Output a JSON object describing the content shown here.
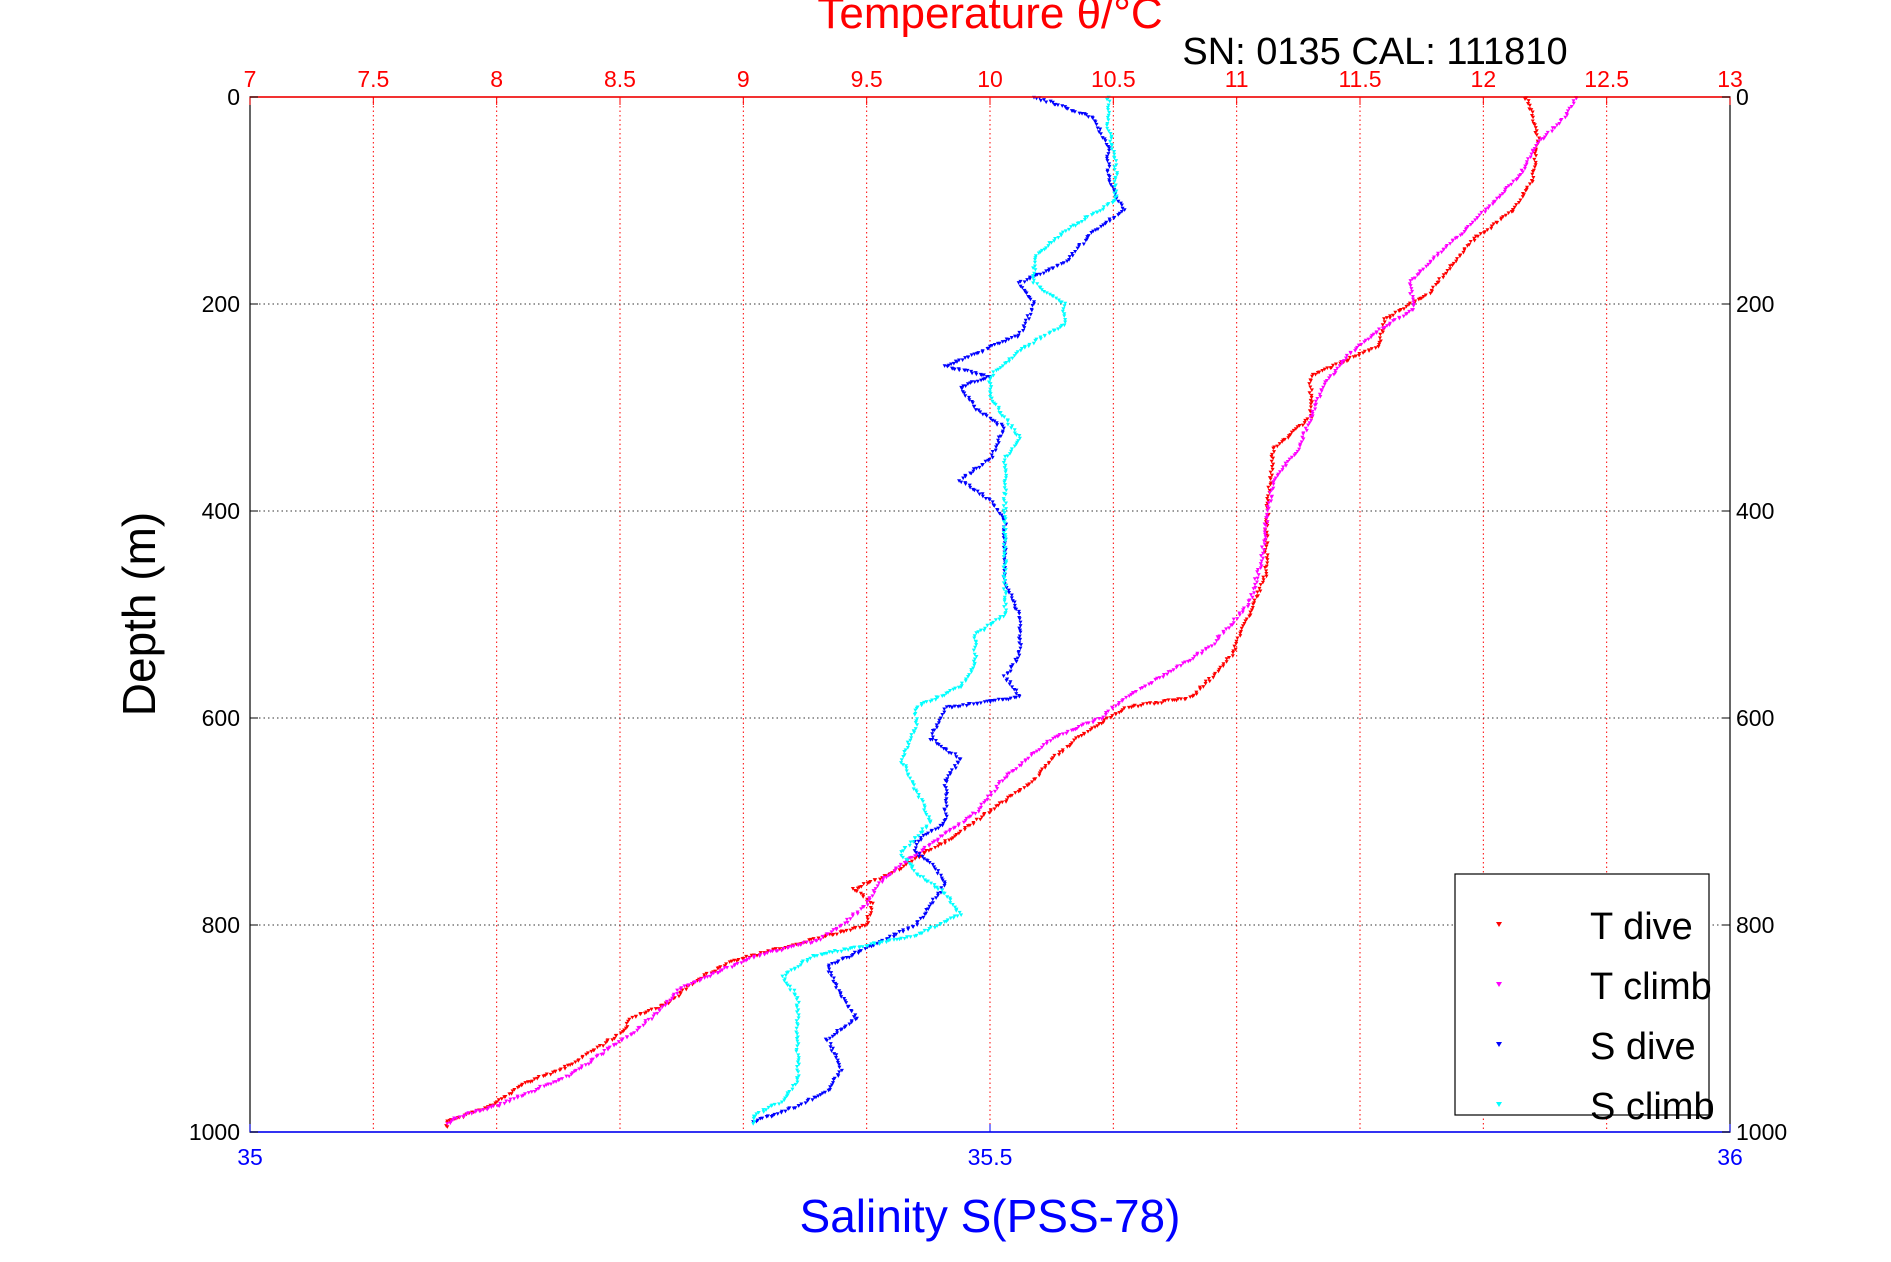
{
  "chart_data": {
    "type": "scatter",
    "title": "Temperature θ/°C",
    "subtitle": "SN: 0135  CAL: 111810",
    "xlabel": "Salinity S(PSS-78)",
    "ylabel": "Depth (m)",
    "x_top": {
      "label": "Temperature θ/°C",
      "lim": [
        7,
        13
      ],
      "ticks": [
        "7",
        "7.5",
        "8",
        "8.5",
        "9",
        "9.5",
        "10",
        "10.5",
        "11",
        "11.5",
        "12",
        "12.5",
        "13"
      ],
      "color": "#ff0000"
    },
    "x_bottom": {
      "label": "Salinity S(PSS-78)",
      "lim": [
        35,
        36
      ],
      "ticks": [
        "35",
        "35.5",
        "36"
      ],
      "color": "#0000ff"
    },
    "y": {
      "lim": [
        0,
        1000
      ],
      "reversed": true,
      "ticks_left": [
        "0",
        "200",
        "400",
        "600",
        "800",
        "1000"
      ],
      "ticks_right": [
        "0",
        "200",
        "400",
        "600",
        "800",
        "1000"
      ]
    },
    "grid": true,
    "legend_position": "bottom-right",
    "series": [
      {
        "name": "T dive",
        "axis": "temperature",
        "color": "#ff0000",
        "points": [
          [
            12.17,
            0
          ],
          [
            12.2,
            15
          ],
          [
            12.22,
            40
          ],
          [
            12.2,
            80
          ],
          [
            12.12,
            110
          ],
          [
            11.95,
            140
          ],
          [
            11.88,
            160
          ],
          [
            11.78,
            190
          ],
          [
            11.6,
            215
          ],
          [
            11.58,
            240
          ],
          [
            11.3,
            270
          ],
          [
            11.3,
            310
          ],
          [
            11.15,
            340
          ],
          [
            11.13,
            380
          ],
          [
            11.12,
            420
          ],
          [
            11.12,
            460
          ],
          [
            11.05,
            500
          ],
          [
            10.98,
            540
          ],
          [
            10.9,
            560
          ],
          [
            10.82,
            580
          ],
          [
            10.55,
            590
          ],
          [
            10.35,
            620
          ],
          [
            10.25,
            640
          ],
          [
            10.18,
            660
          ],
          [
            10.0,
            690
          ],
          [
            9.85,
            715
          ],
          [
            9.7,
            735
          ],
          [
            9.6,
            750
          ],
          [
            9.45,
            765
          ],
          [
            9.52,
            780
          ],
          [
            9.5,
            800
          ],
          [
            9.2,
            820
          ],
          [
            8.95,
            835
          ],
          [
            8.8,
            855
          ],
          [
            8.7,
            875
          ],
          [
            8.55,
            890
          ],
          [
            8.5,
            905
          ],
          [
            8.4,
            920
          ],
          [
            8.3,
            935
          ],
          [
            8.1,
            955
          ],
          [
            7.98,
            975
          ],
          [
            7.8,
            990
          ],
          [
            7.8,
            995
          ]
        ]
      },
      {
        "name": "T climb",
        "axis": "temperature",
        "color": "#ff00ff",
        "points": [
          [
            12.38,
            0
          ],
          [
            12.33,
            20
          ],
          [
            12.22,
            45
          ],
          [
            12.15,
            75
          ],
          [
            12.05,
            100
          ],
          [
            11.92,
            130
          ],
          [
            11.78,
            160
          ],
          [
            11.7,
            180
          ],
          [
            11.72,
            205
          ],
          [
            11.58,
            225
          ],
          [
            11.45,
            250
          ],
          [
            11.35,
            280
          ],
          [
            11.3,
            310
          ],
          [
            11.25,
            340
          ],
          [
            11.15,
            370
          ],
          [
            11.12,
            410
          ],
          [
            11.1,
            450
          ],
          [
            11.05,
            490
          ],
          [
            10.9,
            530
          ],
          [
            10.7,
            560
          ],
          [
            10.55,
            580
          ],
          [
            10.45,
            600
          ],
          [
            10.25,
            620
          ],
          [
            10.15,
            640
          ],
          [
            10.05,
            660
          ],
          [
            9.95,
            690
          ],
          [
            9.8,
            715
          ],
          [
            9.65,
            740
          ],
          [
            9.55,
            760
          ],
          [
            9.5,
            780
          ],
          [
            9.4,
            800
          ],
          [
            9.3,
            815
          ],
          [
            9.05,
            830
          ],
          [
            8.9,
            845
          ],
          [
            8.75,
            860
          ],
          [
            8.65,
            885
          ],
          [
            8.55,
            905
          ],
          [
            8.42,
            925
          ],
          [
            8.3,
            945
          ],
          [
            8.15,
            960
          ],
          [
            8.0,
            975
          ],
          [
            7.85,
            985
          ],
          [
            7.8,
            992
          ]
        ]
      },
      {
        "name": "S dive",
        "axis": "salinity",
        "color": "#0000ff",
        "points": [
          [
            35.53,
            0
          ],
          [
            35.55,
            10
          ],
          [
            35.57,
            20
          ],
          [
            35.58,
            50
          ],
          [
            35.58,
            80
          ],
          [
            35.59,
            110
          ],
          [
            35.57,
            130
          ],
          [
            35.55,
            160
          ],
          [
            35.52,
            180
          ],
          [
            35.53,
            200
          ],
          [
            35.52,
            230
          ],
          [
            35.47,
            260
          ],
          [
            35.5,
            270
          ],
          [
            35.48,
            280
          ],
          [
            35.49,
            300
          ],
          [
            35.51,
            320
          ],
          [
            35.5,
            350
          ],
          [
            35.48,
            370
          ],
          [
            35.5,
            390
          ],
          [
            35.51,
            410
          ],
          [
            35.51,
            440
          ],
          [
            35.51,
            470
          ],
          [
            35.52,
            500
          ],
          [
            35.52,
            540
          ],
          [
            35.51,
            560
          ],
          [
            35.52,
            580
          ],
          [
            35.47,
            590
          ],
          [
            35.46,
            620
          ],
          [
            35.48,
            640
          ],
          [
            35.47,
            660
          ],
          [
            35.47,
            700
          ],
          [
            35.45,
            720
          ],
          [
            35.45,
            730
          ],
          [
            35.46,
            740
          ],
          [
            35.47,
            760
          ],
          [
            35.46,
            780
          ],
          [
            35.45,
            800
          ],
          [
            35.42,
            820
          ],
          [
            35.39,
            840
          ],
          [
            35.4,
            870
          ],
          [
            35.41,
            890
          ],
          [
            35.39,
            910
          ],
          [
            35.4,
            940
          ],
          [
            35.39,
            960
          ],
          [
            35.37,
            975
          ],
          [
            35.35,
            985
          ],
          [
            35.34,
            990
          ]
        ]
      },
      {
        "name": "S climb",
        "axis": "salinity",
        "color": "#00ffff",
        "points": [
          [
            35.58,
            0
          ],
          [
            35.58,
            30
          ],
          [
            35.585,
            60
          ],
          [
            35.585,
            100
          ],
          [
            35.55,
            130
          ],
          [
            35.53,
            155
          ],
          [
            35.53,
            180
          ],
          [
            35.55,
            200
          ],
          [
            35.55,
            220
          ],
          [
            35.52,
            245
          ],
          [
            35.5,
            270
          ],
          [
            35.5,
            290
          ],
          [
            35.51,
            310
          ],
          [
            35.52,
            330
          ],
          [
            35.51,
            350
          ],
          [
            35.51,
            380
          ],
          [
            35.51,
            420
          ],
          [
            35.51,
            470
          ],
          [
            35.51,
            500
          ],
          [
            35.49,
            520
          ],
          [
            35.49,
            550
          ],
          [
            35.48,
            570
          ],
          [
            35.45,
            590
          ],
          [
            35.45,
            610
          ],
          [
            35.44,
            640
          ],
          [
            35.45,
            670
          ],
          [
            35.46,
            700
          ],
          [
            35.44,
            730
          ],
          [
            35.45,
            750
          ],
          [
            35.47,
            770
          ],
          [
            35.48,
            790
          ],
          [
            35.45,
            810
          ],
          [
            35.38,
            830
          ],
          [
            35.36,
            850
          ],
          [
            35.37,
            870
          ],
          [
            35.37,
            890
          ],
          [
            35.37,
            920
          ],
          [
            35.37,
            950
          ],
          [
            35.36,
            970
          ],
          [
            35.34,
            985
          ],
          [
            35.34,
            992
          ]
        ]
      }
    ]
  }
}
